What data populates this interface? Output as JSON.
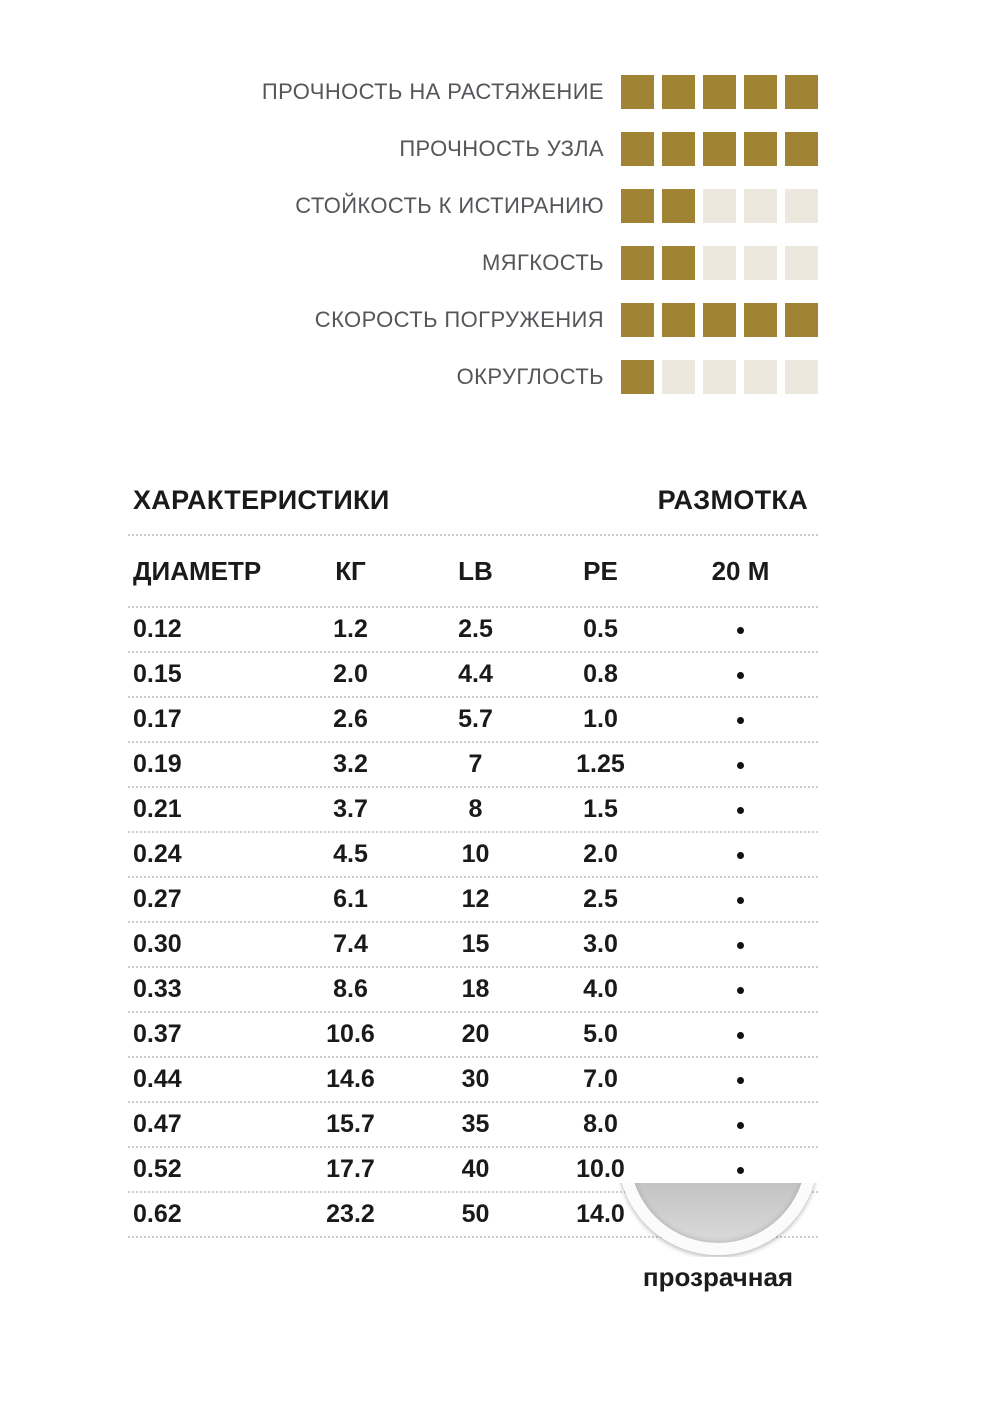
{
  "ratings": {
    "max": 5,
    "filled_color": "#A08434",
    "empty_color": "#ECE8DE",
    "items": [
      {
        "label": "ПРОЧНОСТЬ НА РАСТЯЖЕНИЕ",
        "value": 5
      },
      {
        "label": "ПРОЧНОСТЬ УЗЛА",
        "value": 5
      },
      {
        "label": "СТОЙКОСТЬ К ИСТИРАНИЮ",
        "value": 2
      },
      {
        "label": "МЯГКОСТЬ",
        "value": 2
      },
      {
        "label": "СКОРОСТЬ ПОГРУЖЕНИЯ",
        "value": 5
      },
      {
        "label": "ОКРУГЛОСТЬ",
        "value": 1
      }
    ]
  },
  "table": {
    "section_left_title": "ХАРАКТЕРИСТИКИ",
    "section_right_title": "РАЗМОТКА",
    "columns": [
      "ДИАМЕТР",
      "КГ",
      "LB",
      "PE",
      "20 М"
    ],
    "rows": [
      {
        "diameter": "0.12",
        "kg": "1.2",
        "lb": "2.5",
        "pe": "0.5",
        "spool_20m": true
      },
      {
        "diameter": "0.15",
        "kg": "2.0",
        "lb": "4.4",
        "pe": "0.8",
        "spool_20m": true
      },
      {
        "diameter": "0.17",
        "kg": "2.6",
        "lb": "5.7",
        "pe": "1.0",
        "spool_20m": true
      },
      {
        "diameter": "0.19",
        "kg": "3.2",
        "lb": "7",
        "pe": "1.25",
        "spool_20m": true
      },
      {
        "diameter": "0.21",
        "kg": "3.7",
        "lb": "8",
        "pe": "1.5",
        "spool_20m": true
      },
      {
        "diameter": "0.24",
        "kg": "4.5",
        "lb": "10",
        "pe": "2.0",
        "spool_20m": true
      },
      {
        "diameter": "0.27",
        "kg": "6.1",
        "lb": "12",
        "pe": "2.5",
        "spool_20m": true
      },
      {
        "diameter": "0.30",
        "kg": "7.4",
        "lb": "15",
        "pe": "3.0",
        "spool_20m": true
      },
      {
        "diameter": "0.33",
        "kg": "8.6",
        "lb": "18",
        "pe": "4.0",
        "spool_20m": true
      },
      {
        "diameter": "0.37",
        "kg": "10.6",
        "lb": "20",
        "pe": "5.0",
        "spool_20m": true
      },
      {
        "diameter": "0.44",
        "kg": "14.6",
        "lb": "30",
        "pe": "7.0",
        "spool_20m": true
      },
      {
        "diameter": "0.47",
        "kg": "15.7",
        "lb": "35",
        "pe": "8.0",
        "spool_20m": true
      },
      {
        "diameter": "0.52",
        "kg": "17.7",
        "lb": "40",
        "pe": "10.0",
        "spool_20m": true
      },
      {
        "diameter": "0.62",
        "kg": "23.2",
        "lb": "50",
        "pe": "14.0",
        "spool_20m": true
      }
    ]
  },
  "swatch": {
    "label": "прозрачная"
  }
}
